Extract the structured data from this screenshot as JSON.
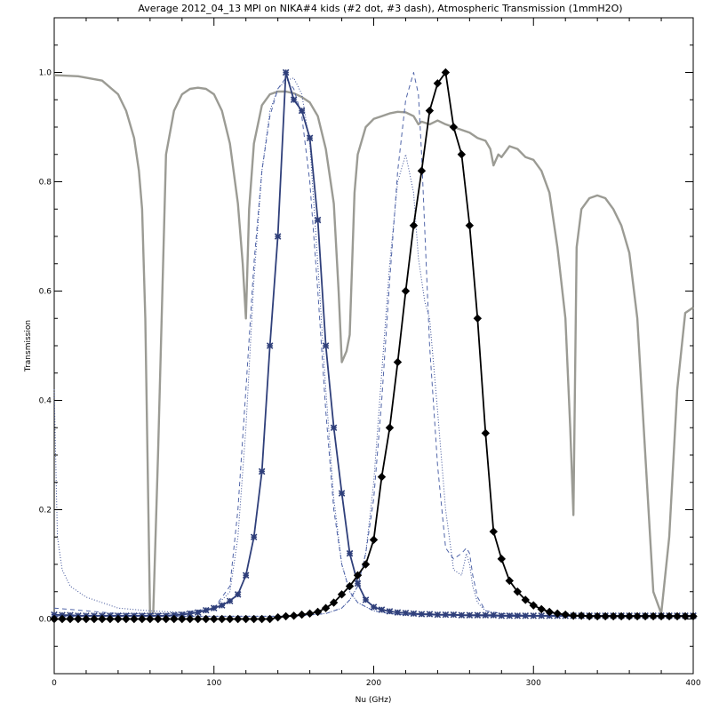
{
  "chart_data": {
    "type": "line",
    "title": "Average 2012_04_13 MPI on NIKA#4 kids (#2 dot, #3 dash), Atmospheric Transmission (1mmH2O)",
    "xlabel": "Nu (GHz)",
    "ylabel": "Transmission",
    "xlim": [
      0,
      400
    ],
    "ylim": [
      -0.1,
      1.1
    ],
    "xticks": [
      0,
      100,
      200,
      300,
      400
    ],
    "yticks": [
      0.0,
      0.2,
      0.4,
      0.6,
      0.8,
      1.0
    ],
    "xtick_labels": [
      "0",
      "100",
      "200",
      "300",
      "400"
    ],
    "ytick_labels": [
      "0.0",
      "0.2",
      "0.4",
      "0.6",
      "0.8",
      "1.0"
    ],
    "grid": false,
    "series": [
      {
        "style": "atmosphere",
        "color": "#9b9b94",
        "x": [
          0,
          15,
          30,
          40,
          45,
          50,
          53,
          55,
          57,
          60,
          62,
          65,
          70,
          75,
          80,
          85,
          90,
          95,
          100,
          105,
          110,
          115,
          118,
          120,
          122,
          125,
          130,
          135,
          140,
          145,
          150,
          155,
          160,
          165,
          170,
          175,
          178,
          180,
          183,
          185,
          188,
          190,
          195,
          200,
          205,
          210,
          215,
          220,
          225,
          228,
          230,
          235,
          240,
          245,
          250,
          255,
          260,
          265,
          270,
          273,
          275,
          278,
          280,
          285,
          290,
          295,
          300,
          305,
          310,
          315,
          320,
          323,
          325,
          327,
          330,
          335,
          340,
          345,
          350,
          355,
          360,
          365,
          370,
          375,
          380,
          385,
          390,
          395,
          400
        ],
        "y": [
          0.995,
          0.993,
          0.985,
          0.96,
          0.93,
          0.88,
          0.82,
          0.75,
          0.55,
          0.01,
          0.01,
          0.3,
          0.85,
          0.93,
          0.96,
          0.97,
          0.972,
          0.97,
          0.96,
          0.93,
          0.87,
          0.76,
          0.65,
          0.55,
          0.75,
          0.87,
          0.94,
          0.96,
          0.965,
          0.965,
          0.962,
          0.955,
          0.945,
          0.92,
          0.86,
          0.76,
          0.6,
          0.47,
          0.49,
          0.52,
          0.78,
          0.85,
          0.9,
          0.915,
          0.92,
          0.925,
          0.928,
          0.927,
          0.92,
          0.905,
          0.91,
          0.905,
          0.912,
          0.905,
          0.9,
          0.895,
          0.89,
          0.88,
          0.875,
          0.86,
          0.83,
          0.85,
          0.845,
          0.865,
          0.86,
          0.845,
          0.84,
          0.82,
          0.78,
          0.68,
          0.55,
          0.35,
          0.19,
          0.68,
          0.75,
          0.77,
          0.775,
          0.77,
          0.75,
          0.72,
          0.67,
          0.55,
          0.3,
          0.05,
          0.01,
          0.15,
          0.42,
          0.56,
          0.57
        ]
      },
      {
        "style": "band-dotted",
        "color": "#3a4e96",
        "x": [
          0,
          2,
          5,
          10,
          20,
          40,
          60,
          80,
          100,
          110,
          115,
          120,
          125,
          130,
          135,
          140,
          145,
          150,
          155,
          160,
          165,
          170,
          175,
          180,
          185,
          190,
          200,
          210,
          220,
          230,
          240,
          250,
          260,
          280,
          300,
          350,
          400
        ],
        "y": [
          0.42,
          0.15,
          0.09,
          0.06,
          0.04,
          0.02,
          0.015,
          0.012,
          0.02,
          0.05,
          0.15,
          0.35,
          0.62,
          0.82,
          0.93,
          0.97,
          0.985,
          0.99,
          0.96,
          0.87,
          0.65,
          0.42,
          0.22,
          0.1,
          0.05,
          0.03,
          0.015,
          0.01,
          0.008,
          0.008,
          0.007,
          0.007,
          0.006,
          0.005,
          0.005,
          0.005,
          0.005
        ]
      },
      {
        "style": "band-dashed",
        "color": "#4f64a8",
        "x": [
          0,
          20,
          40,
          60,
          80,
          100,
          110,
          115,
          120,
          125,
          130,
          135,
          140,
          145,
          150,
          155,
          160,
          165,
          170,
          175,
          180,
          185,
          190,
          200,
          210,
          220,
          230,
          240,
          260,
          280,
          300,
          350,
          400
        ],
        "y": [
          0.02,
          0.015,
          0.01,
          0.01,
          0.01,
          0.02,
          0.06,
          0.2,
          0.42,
          0.65,
          0.82,
          0.92,
          0.97,
          0.99,
          0.97,
          0.92,
          0.8,
          0.6,
          0.38,
          0.2,
          0.1,
          0.05,
          0.03,
          0.015,
          0.01,
          0.008,
          0.008,
          0.007,
          0.006,
          0.005,
          0.005,
          0.005,
          0.005
        ]
      },
      {
        "style": "band-dotted",
        "color": "#3a4e96",
        "x": [
          0,
          60,
          120,
          150,
          170,
          180,
          185,
          190,
          195,
          200,
          205,
          210,
          215,
          220,
          225,
          228,
          230,
          232,
          235,
          240,
          245,
          250,
          255,
          258,
          260,
          262,
          265,
          270,
          280,
          300,
          350,
          400
        ],
        "y": [
          0.005,
          0.005,
          0.005,
          0.005,
          0.01,
          0.02,
          0.035,
          0.06,
          0.12,
          0.25,
          0.45,
          0.65,
          0.8,
          0.85,
          0.78,
          0.66,
          0.62,
          0.58,
          0.55,
          0.38,
          0.2,
          0.09,
          0.08,
          0.12,
          0.1,
          0.06,
          0.03,
          0.015,
          0.01,
          0.006,
          0.005,
          0.005
        ]
      },
      {
        "style": "band-dashed",
        "color": "#4f64a8",
        "x": [
          0,
          60,
          120,
          150,
          170,
          180,
          185,
          190,
          195,
          200,
          205,
          210,
          215,
          220,
          225,
          228,
          230,
          235,
          240,
          245,
          250,
          255,
          258,
          260,
          262,
          265,
          270,
          280,
          300,
          350,
          400
        ],
        "y": [
          0.005,
          0.005,
          0.005,
          0.005,
          0.01,
          0.02,
          0.035,
          0.06,
          0.12,
          0.22,
          0.4,
          0.62,
          0.82,
          0.95,
          1.0,
          0.96,
          0.85,
          0.5,
          0.28,
          0.13,
          0.11,
          0.12,
          0.13,
          0.12,
          0.08,
          0.04,
          0.015,
          0.01,
          0.006,
          0.005,
          0.005
        ]
      },
      {
        "style": "band-markers",
        "marker": "asterisk",
        "color": "#2f3f7a",
        "x": [
          0,
          5,
          10,
          15,
          20,
          25,
          30,
          35,
          40,
          45,
          50,
          55,
          60,
          65,
          70,
          75,
          80,
          85,
          90,
          95,
          100,
          105,
          110,
          115,
          120,
          125,
          130,
          135,
          140,
          145,
          150,
          155,
          160,
          165,
          170,
          175,
          180,
          185,
          190,
          195,
          200,
          205,
          210,
          215,
          220,
          225,
          230,
          235,
          240,
          245,
          250,
          255,
          260,
          265,
          270,
          275,
          280,
          285,
          290,
          295,
          300,
          305,
          310,
          315,
          320,
          325,
          330,
          335,
          340,
          345,
          350,
          355,
          360,
          365,
          370,
          375,
          380,
          385,
          390,
          395,
          400
        ],
        "y": [
          0.008,
          0.007,
          0.007,
          0.006,
          0.006,
          0.006,
          0.006,
          0.006,
          0.006,
          0.006,
          0.006,
          0.006,
          0.006,
          0.006,
          0.006,
          0.007,
          0.008,
          0.01,
          0.012,
          0.016,
          0.02,
          0.025,
          0.033,
          0.045,
          0.08,
          0.15,
          0.27,
          0.5,
          0.7,
          1.0,
          0.95,
          0.93,
          0.88,
          0.73,
          0.5,
          0.35,
          0.23,
          0.12,
          0.065,
          0.035,
          0.022,
          0.017,
          0.014,
          0.012,
          0.011,
          0.01,
          0.009,
          0.009,
          0.008,
          0.008,
          0.008,
          0.007,
          0.007,
          0.007,
          0.007,
          0.007,
          0.006,
          0.006,
          0.006,
          0.006,
          0.006,
          0.006,
          0.006,
          0.006,
          0.006,
          0.006,
          0.006,
          0.006,
          0.006,
          0.006,
          0.006,
          0.006,
          0.006,
          0.006,
          0.006,
          0.006,
          0.006,
          0.006,
          0.006,
          0.006,
          0.006
        ]
      },
      {
        "style": "band-markers",
        "marker": "diamond",
        "color": "#000000",
        "x": [
          0,
          5,
          10,
          15,
          20,
          25,
          30,
          35,
          40,
          45,
          50,
          55,
          60,
          65,
          70,
          75,
          80,
          85,
          90,
          95,
          100,
          105,
          110,
          115,
          120,
          125,
          130,
          135,
          140,
          145,
          150,
          155,
          160,
          165,
          170,
          175,
          180,
          185,
          190,
          195,
          200,
          205,
          210,
          215,
          220,
          225,
          230,
          235,
          240,
          245,
          250,
          255,
          260,
          265,
          270,
          275,
          280,
          285,
          290,
          295,
          300,
          305,
          310,
          315,
          320,
          325,
          330,
          335,
          340,
          345,
          350,
          355,
          360,
          365,
          370,
          375,
          380,
          385,
          390,
          395,
          400
        ],
        "y": [
          0.0,
          0.0,
          0.0,
          0.0,
          0.0,
          0.0,
          0.0,
          0.0,
          0.0,
          0.0,
          0.0,
          0.0,
          0.0,
          0.0,
          0.0,
          0.0,
          0.0,
          0.0,
          0.0,
          0.0,
          0.0,
          0.0,
          0.0,
          0.0,
          0.0,
          0.0,
          0.0,
          0.0,
          0.003,
          0.005,
          0.006,
          0.008,
          0.01,
          0.013,
          0.02,
          0.03,
          0.045,
          0.06,
          0.08,
          0.1,
          0.145,
          0.26,
          0.35,
          0.47,
          0.6,
          0.72,
          0.82,
          0.93,
          0.98,
          1.0,
          0.9,
          0.85,
          0.72,
          0.55,
          0.34,
          0.16,
          0.11,
          0.07,
          0.05,
          0.035,
          0.025,
          0.018,
          0.013,
          0.01,
          0.008,
          0.006,
          0.006,
          0.005,
          0.005,
          0.005,
          0.005,
          0.005,
          0.005,
          0.005,
          0.005,
          0.005,
          0.005,
          0.005,
          0.005,
          0.005,
          0.005
        ]
      }
    ]
  }
}
